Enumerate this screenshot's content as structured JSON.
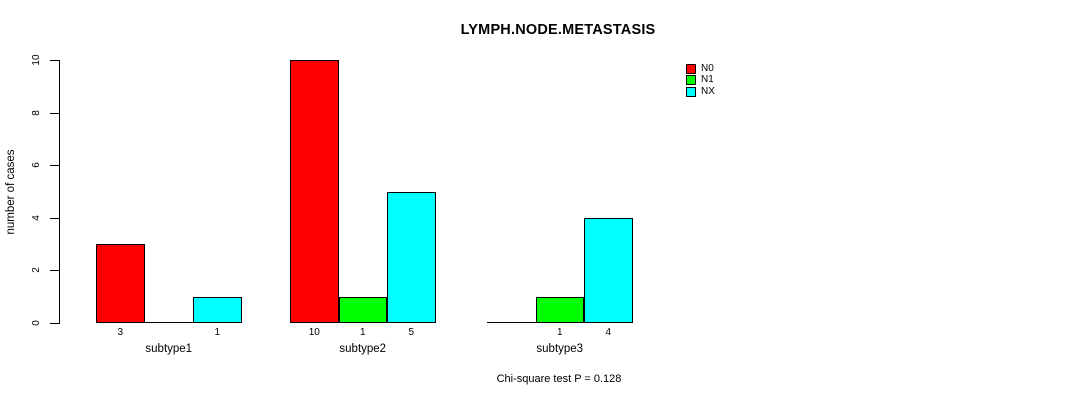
{
  "chart_data": {
    "type": "bar",
    "title": "LYMPH.NODE.METASTASIS",
    "xlabel": "",
    "ylabel": "number of cases",
    "categories": [
      "subtype1",
      "subtype2",
      "subtype3"
    ],
    "series": [
      {
        "name": "N0",
        "color": "#FF0000",
        "values": [
          3,
          10,
          0
        ]
      },
      {
        "name": "N1",
        "color": "#00FF00",
        "values": [
          0,
          1,
          1
        ]
      },
      {
        "name": "NX",
        "color": "#00FFFF",
        "values": [
          1,
          5,
          4
        ]
      }
    ],
    "ylim": [
      0,
      10
    ],
    "yticks": [
      0,
      2,
      4,
      6,
      8,
      10
    ],
    "grid": false,
    "legend_position": "top-right",
    "bar_value_labels": true,
    "zero_value_labels_hidden": true,
    "annotation": "Chi-square test P = 0.128",
    "background_color": "#FFFFFF",
    "axis_color": "#000000"
  }
}
